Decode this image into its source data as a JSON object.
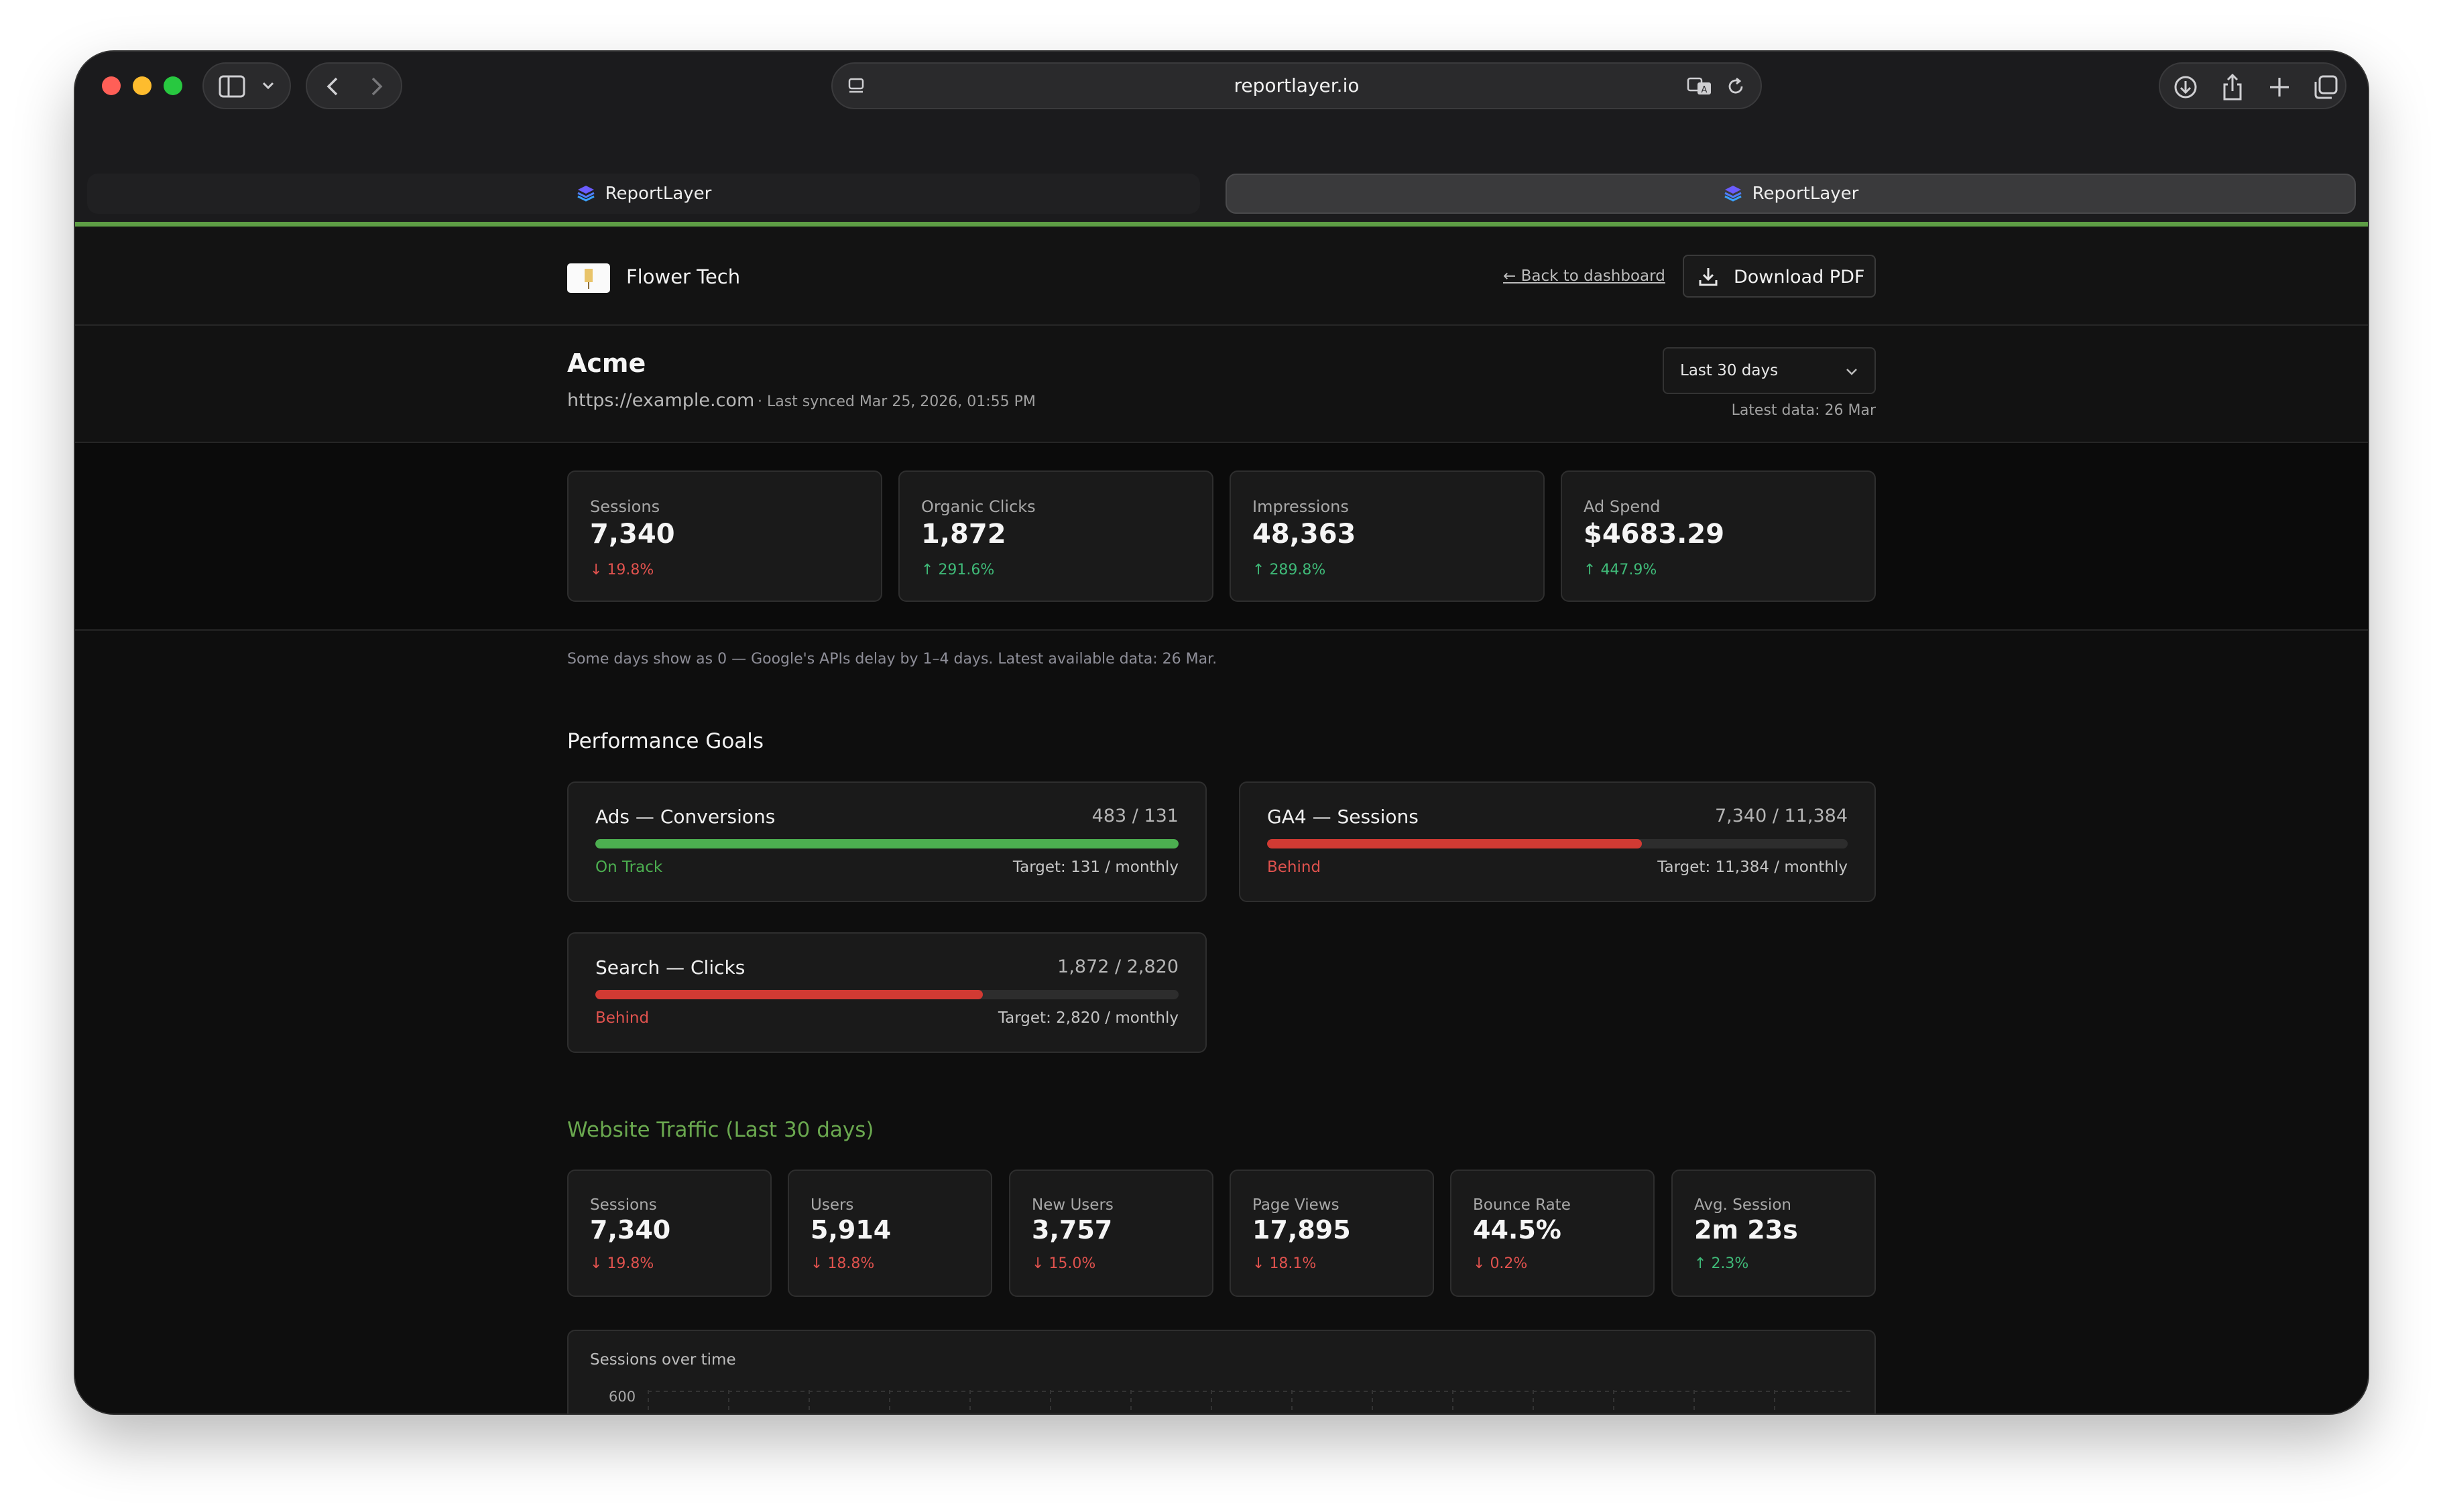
{
  "browser": {
    "url": "reportlayer.io",
    "tabs": [
      {
        "label": "ReportLayer",
        "active": false
      },
      {
        "label": "ReportLayer",
        "active": true
      }
    ]
  },
  "header": {
    "brand_name": "Flower Tech",
    "back_link": "← Back to dashboard",
    "download_label": "Download PDF"
  },
  "client": {
    "name": "Acme",
    "url": "https://example.com",
    "sync_text": "· Last synced Mar 25, 2026, 01:55 PM",
    "range_selected": "Last 30 days",
    "latest_data": "Latest data: 26 Mar"
  },
  "kpis": [
    {
      "label": "Sessions",
      "value": "7,340",
      "delta": "19.8%",
      "direction": "down"
    },
    {
      "label": "Organic Clicks",
      "value": "1,872",
      "delta": "291.6%",
      "direction": "up"
    },
    {
      "label": "Impressions",
      "value": "48,363",
      "delta": "289.8%",
      "direction": "up"
    },
    {
      "label": "Ad Spend",
      "value": "$4683.29",
      "delta": "447.9%",
      "direction": "up"
    }
  ],
  "notice": "Some days show as 0 — Google's APIs delay by 1–4 days. Latest available data: 26 Mar.",
  "goals": {
    "title": "Performance Goals",
    "items": [
      {
        "title": "Ads — Conversions",
        "ratio": "483 / 131",
        "progress": 1.0,
        "status": "On Track",
        "target": "Target: 131 / monthly",
        "color": "#4caf50",
        "status_color": "#4caf50"
      },
      {
        "title": "GA4 — Sessions",
        "ratio": "7,340 / 11,384",
        "progress": 0.645,
        "status": "Behind",
        "target": "Target: 11,384 / monthly",
        "color": "#d23a33",
        "status_color": "#e0524e"
      },
      {
        "title": "Search — Clicks",
        "ratio": "1,872 / 2,820",
        "progress": 0.664,
        "status": "Behind",
        "target": "Target: 2,820 / monthly",
        "color": "#d23a33",
        "status_color": "#e0524e"
      }
    ]
  },
  "traffic": {
    "title": "Website Traffic (Last 30 days)",
    "title_color": "#6aa84f",
    "kpis": [
      {
        "label": "Sessions",
        "value": "7,340",
        "delta": "19.8%",
        "direction": "down"
      },
      {
        "label": "Users",
        "value": "5,914",
        "delta": "18.8%",
        "direction": "down"
      },
      {
        "label": "New Users",
        "value": "3,757",
        "delta": "15.0%",
        "direction": "down"
      },
      {
        "label": "Page Views",
        "value": "17,895",
        "delta": "18.1%",
        "direction": "down"
      },
      {
        "label": "Bounce Rate",
        "value": "44.5%",
        "delta": "0.2%",
        "direction": "down"
      },
      {
        "label": "Avg. Session",
        "value": "2m 23s",
        "delta": "2.3%",
        "direction": "up"
      }
    ]
  },
  "chart": {
    "title": "Sessions over time",
    "y_tick_top": "600"
  },
  "colors": {
    "accent_green": "#5e9e45",
    "positive": "#3fba78",
    "negative": "#e0524e"
  }
}
